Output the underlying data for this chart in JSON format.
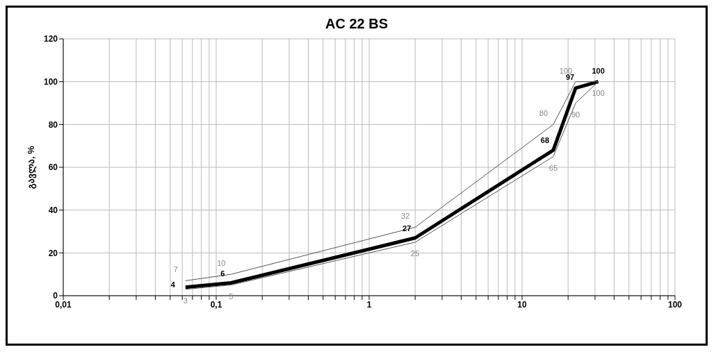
{
  "chart_data": {
    "type": "line",
    "title": "AC 22 BS",
    "ylabel": "გავლა, %",
    "log": "x",
    "x": [
      0.063,
      0.125,
      2,
      16,
      22.4,
      31.5
    ],
    "series": [
      {
        "color": "#000000",
        "values": [
          4,
          6,
          27,
          68,
          97,
          100
        ],
        "value_labels": [
          "4",
          "6",
          "27",
          "68",
          "97",
          "100"
        ]
      },
      {
        "color": "#555555",
        "values": [
          7,
          10,
          32,
          80,
          100,
          100
        ],
        "value_labels": [
          "7",
          "10",
          "32",
          "80",
          "100",
          null
        ]
      },
      {
        "color": "#555555",
        "values": [
          3,
          5,
          25,
          65,
          90,
          100
        ],
        "value_labels": [
          "3",
          "5",
          "25",
          "65",
          "90",
          "100"
        ]
      }
    ],
    "xlim": [
      0.01,
      100
    ],
    "xticks": [
      {
        "value": 0.01,
        "label": "0,01"
      },
      {
        "value": 0.02,
        "label": null
      },
      {
        "value": 0.03,
        "label": null
      },
      {
        "value": 0.04,
        "label": null
      },
      {
        "value": 0.05,
        "label": null
      },
      {
        "value": 0.06,
        "label": null
      },
      {
        "value": 0.07,
        "label": null
      },
      {
        "value": 0.08,
        "label": null
      },
      {
        "value": 0.09,
        "label": null
      },
      {
        "value": 0.1,
        "label": "0,1"
      },
      {
        "value": 0.2,
        "label": null
      },
      {
        "value": 0.3,
        "label": null
      },
      {
        "value": 0.4,
        "label": null
      },
      {
        "value": 0.5,
        "label": null
      },
      {
        "value": 0.6,
        "label": null
      },
      {
        "value": 0.7,
        "label": null
      },
      {
        "value": 0.8,
        "label": null
      },
      {
        "value": 0.9,
        "label": null
      },
      1,
      {
        "value": 2,
        "label": null
      },
      {
        "value": 3,
        "label": null
      },
      {
        "value": 4,
        "label": null
      },
      {
        "value": 5,
        "label": null
      },
      {
        "value": 6,
        "label": null
      },
      {
        "value": 7,
        "label": null
      },
      {
        "value": 8,
        "label": null
      },
      {
        "value": 9,
        "label": null
      },
      10,
      {
        "value": 20,
        "label": null
      },
      {
        "value": 30,
        "label": null
      },
      {
        "value": 40,
        "label": null
      },
      {
        "value": 50,
        "label": null
      },
      {
        "value": 60,
        "label": null
      },
      {
        "value": 70,
        "label": null
      },
      {
        "value": 80,
        "label": null
      },
      {
        "value": 90,
        "label": null
      },
      100
    ],
    "ylim": [
      0,
      120
    ],
    "yticks": [
      0,
      20,
      40,
      60,
      80,
      100,
      120
    ],
    "grid": true,
    "marker": "none",
    "line_style": "solid"
  }
}
